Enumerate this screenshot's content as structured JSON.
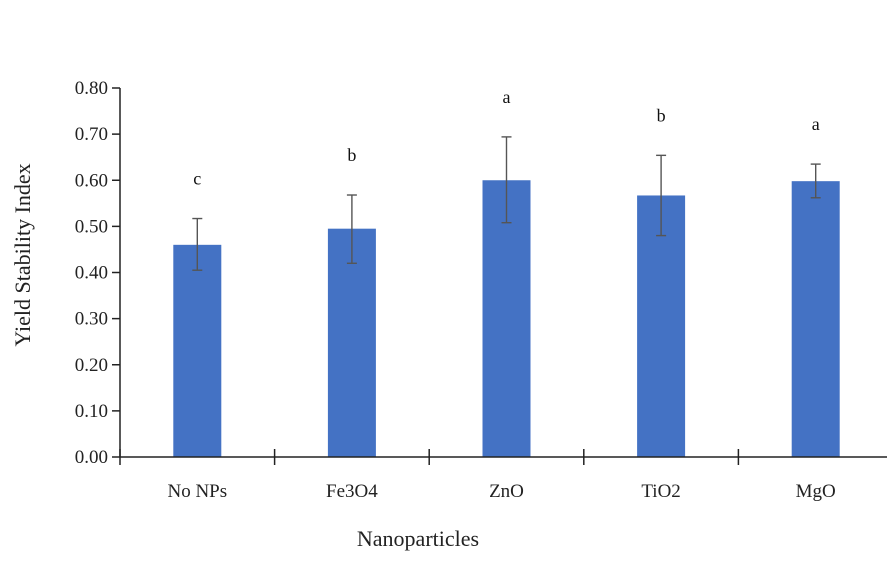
{
  "chart_data": {
    "type": "bar",
    "title": "",
    "xlabel": "Nanoparticles",
    "ylabel": "Yield Stability Index",
    "categories": [
      "No NPs",
      "Fe3O4",
      "ZnO",
      "TiO2",
      "MgO"
    ],
    "values": [
      0.46,
      0.495,
      0.6,
      0.567,
      0.598
    ],
    "error_low": [
      0.405,
      0.42,
      0.508,
      0.48,
      0.562
    ],
    "error_high": [
      0.517,
      0.568,
      0.694,
      0.654,
      0.635
    ],
    "significance_letters": [
      "c",
      "b",
      "a",
      "b",
      "a"
    ],
    "yticks": [
      "0.00",
      "0.10",
      "0.20",
      "0.30",
      "0.40",
      "0.50",
      "0.60",
      "0.70",
      "0.80"
    ],
    "ylim": [
      0,
      0.8
    ],
    "grid": false,
    "legend": "none",
    "bar_color": "#4472C4",
    "error_color": "#555555"
  }
}
